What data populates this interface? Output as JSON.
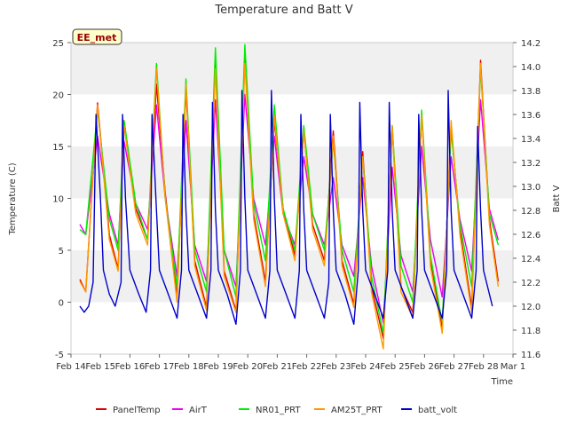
{
  "chart_data": {
    "type": "line",
    "title": "Temperature and Batt V",
    "xlabel": "Time",
    "ylabel": "Temperature (C)",
    "y2label": "Batt V",
    "xlim": [
      14.0,
      29.0
    ],
    "ylim": [
      -5,
      25
    ],
    "y2lim": [
      11.6,
      14.2
    ],
    "x_ticks": [
      14,
      15,
      16,
      17,
      18,
      19,
      20,
      21,
      22,
      23,
      24,
      25,
      26,
      27,
      28,
      29
    ],
    "x_tick_labels": [
      "Feb 14",
      "Feb 15",
      "Feb 16",
      "Feb 17",
      "Feb 18",
      "Feb 19",
      "Feb 20",
      "Feb 21",
      "Feb 22",
      "Feb 23",
      "Feb 24",
      "Feb 25",
      "Feb 26",
      "Feb 27",
      "Feb 28",
      "Mar 1"
    ],
    "y_ticks": [
      -5,
      0,
      5,
      10,
      15,
      20,
      25
    ],
    "y2_ticks": [
      11.6,
      11.8,
      12.0,
      12.2,
      12.4,
      12.6,
      12.8,
      13.0,
      13.2,
      13.4,
      13.6,
      13.8,
      14.0,
      14.2
    ],
    "grid": "horizontal bands",
    "legend_position": "bottom",
    "annotation_box": "EE_met",
    "series": [
      {
        "name": "PanelTemp",
        "color": "#dd0000",
        "axis": "left",
        "x": [
          14.3,
          14.5,
          14.9,
          15.3,
          15.6,
          15.8,
          16.2,
          16.6,
          16.9,
          17.2,
          17.6,
          17.9,
          18.2,
          18.6,
          18.9,
          19.2,
          19.6,
          19.9,
          20.2,
          20.6,
          20.9,
          21.2,
          21.6,
          21.9,
          22.2,
          22.6,
          22.9,
          23.2,
          23.6,
          23.9,
          24.2,
          24.6,
          24.9,
          25.2,
          25.6,
          25.9,
          26.2,
          26.6,
          26.9,
          27.2,
          27.6,
          27.9,
          28.2,
          28.5
        ],
        "y": [
          2.2,
          1.0,
          19.2,
          6.5,
          3.2,
          17.5,
          9.0,
          6.0,
          21.0,
          10.5,
          0.5,
          20.5,
          4.0,
          -0.5,
          23.0,
          3.0,
          -0.8,
          23.5,
          8.5,
          2.0,
          17.5,
          9.0,
          4.5,
          16.5,
          7.5,
          4.0,
          16.5,
          4.0,
          -0.2,
          14.5,
          1.5,
          -3.5,
          17.0,
          1.5,
          -1.0,
          18.0,
          4.0,
          -2.5,
          17.0,
          7.0,
          -0.5,
          23.3,
          8.0,
          2.0
        ]
      },
      {
        "name": "AirT",
        "color": "#ee00ee",
        "axis": "left",
        "x": [
          14.3,
          14.5,
          14.9,
          15.3,
          15.6,
          15.8,
          16.2,
          16.6,
          16.9,
          17.2,
          17.6,
          17.9,
          18.2,
          18.6,
          18.9,
          19.2,
          19.6,
          19.9,
          20.2,
          20.6,
          20.9,
          21.2,
          21.6,
          21.9,
          22.2,
          22.6,
          22.9,
          23.2,
          23.6,
          23.9,
          24.2,
          24.6,
          24.9,
          25.2,
          25.6,
          25.9,
          26.2,
          26.6,
          26.9,
          27.2,
          27.6,
          27.9,
          28.2,
          28.5
        ],
        "y": [
          7.5,
          6.5,
          16.0,
          8.5,
          5.5,
          15.5,
          9.5,
          7.0,
          19.0,
          10.0,
          2.5,
          17.5,
          5.5,
          2.0,
          19.5,
          5.0,
          1.5,
          20.0,
          10.0,
          5.5,
          16.0,
          8.5,
          5.5,
          14.0,
          8.5,
          5.5,
          12.0,
          5.5,
          2.5,
          12.0,
          3.5,
          -2.0,
          13.0,
          4.5,
          1.0,
          15.0,
          6.0,
          0.5,
          14.0,
          8.0,
          3.0,
          19.5,
          9.0,
          6.0
        ]
      },
      {
        "name": "NR01_PRT",
        "color": "#00ee00",
        "axis": "left",
        "x": [
          14.3,
          14.5,
          14.9,
          15.3,
          15.6,
          15.8,
          16.2,
          16.6,
          16.9,
          17.2,
          17.6,
          17.9,
          18.2,
          18.6,
          18.9,
          19.2,
          19.6,
          19.9,
          20.2,
          20.6,
          20.9,
          21.2,
          21.6,
          21.9,
          22.2,
          22.6,
          22.9,
          23.2,
          23.6,
          23.9,
          24.2,
          24.6,
          24.9,
          25.2,
          25.6,
          25.9,
          26.2,
          26.6,
          26.9,
          27.2,
          27.6,
          27.9,
          28.2,
          28.5
        ],
        "y": [
          7.0,
          6.5,
          18.5,
          8.0,
          5.0,
          17.5,
          9.5,
          6.0,
          23.0,
          10.0,
          1.5,
          21.5,
          5.0,
          1.0,
          24.5,
          5.0,
          0.5,
          24.8,
          9.5,
          4.0,
          19.0,
          9.0,
          5.0,
          17.0,
          8.5,
          5.0,
          15.5,
          5.0,
          1.0,
          14.0,
          2.5,
          -3.0,
          17.0,
          3.5,
          0.0,
          18.5,
          4.5,
          -2.0,
          16.5,
          7.5,
          1.5,
          22.5,
          8.5,
          5.5
        ]
      },
      {
        "name": "AM25T_PRT",
        "color": "#ff9900",
        "axis": "left",
        "x": [
          14.3,
          14.5,
          14.9,
          15.3,
          15.6,
          15.8,
          16.2,
          16.6,
          16.9,
          17.2,
          17.6,
          17.9,
          18.2,
          18.6,
          18.9,
          19.2,
          19.6,
          19.9,
          20.2,
          20.6,
          20.9,
          21.2,
          21.6,
          21.9,
          22.2,
          22.6,
          22.9,
          23.2,
          23.6,
          23.9,
          24.2,
          24.6,
          24.9,
          25.2,
          25.6,
          25.9,
          26.2,
          26.6,
          26.9,
          27.2,
          27.6,
          27.9,
          28.2,
          28.5
        ],
        "y": [
          2.0,
          1.0,
          19.0,
          6.0,
          3.0,
          17.0,
          8.5,
          5.5,
          22.5,
          10.0,
          0.0,
          21.0,
          3.5,
          -0.8,
          22.5,
          2.5,
          -1.0,
          23.0,
          8.0,
          1.5,
          18.0,
          8.5,
          4.0,
          16.5,
          7.0,
          3.5,
          16.0,
          3.5,
          -0.5,
          14.0,
          1.0,
          -4.5,
          17.0,
          1.0,
          -1.5,
          18.0,
          3.5,
          -3.0,
          17.5,
          6.5,
          -1.0,
          23.0,
          7.5,
          1.5
        ]
      },
      {
        "name": "batt_volt",
        "color": "#0000cc",
        "axis": "right",
        "x": [
          14.3,
          14.45,
          14.6,
          14.75,
          14.85,
          15.0,
          15.1,
          15.3,
          15.5,
          15.7,
          15.75,
          15.85,
          16.0,
          16.3,
          16.55,
          16.7,
          16.75,
          16.9,
          17.0,
          17.3,
          17.6,
          17.75,
          17.8,
          17.9,
          18.0,
          18.3,
          18.6,
          18.75,
          18.8,
          18.9,
          19.0,
          19.3,
          19.6,
          19.75,
          19.8,
          19.9,
          20.0,
          20.3,
          20.6,
          20.75,
          20.8,
          20.9,
          21.0,
          21.3,
          21.6,
          21.75,
          21.8,
          21.9,
          22.0,
          22.3,
          22.6,
          22.75,
          22.8,
          22.9,
          23.0,
          23.3,
          23.6,
          23.75,
          23.8,
          23.9,
          24.0,
          24.3,
          24.6,
          24.75,
          24.8,
          24.9,
          25.0,
          25.3,
          25.6,
          25.75,
          25.8,
          25.9,
          26.0,
          26.3,
          26.6,
          26.75,
          26.8,
          26.9,
          27.0,
          27.3,
          27.6,
          27.75,
          27.8,
          27.9,
          28.0,
          28.3
        ],
        "y": [
          12.0,
          11.95,
          12.0,
          12.2,
          13.6,
          12.9,
          12.3,
          12.1,
          12.0,
          12.2,
          13.6,
          12.9,
          12.3,
          12.1,
          11.95,
          12.3,
          13.6,
          12.8,
          12.3,
          12.1,
          11.9,
          12.3,
          13.6,
          12.8,
          12.3,
          12.1,
          11.9,
          12.3,
          13.7,
          12.8,
          12.3,
          12.1,
          11.85,
          12.3,
          13.8,
          12.9,
          12.3,
          12.1,
          11.9,
          12.3,
          13.8,
          12.9,
          12.3,
          12.1,
          11.9,
          12.3,
          13.6,
          12.8,
          12.3,
          12.1,
          11.9,
          12.2,
          13.6,
          12.8,
          12.3,
          12.1,
          11.85,
          12.3,
          13.7,
          12.8,
          12.3,
          12.1,
          11.9,
          12.3,
          13.7,
          12.8,
          12.3,
          12.1,
          11.9,
          12.3,
          13.6,
          12.8,
          12.3,
          12.1,
          11.9,
          12.3,
          13.8,
          12.8,
          12.3,
          12.1,
          11.9,
          12.3,
          13.5,
          12.8,
          12.3,
          12.0
        ]
      }
    ]
  }
}
